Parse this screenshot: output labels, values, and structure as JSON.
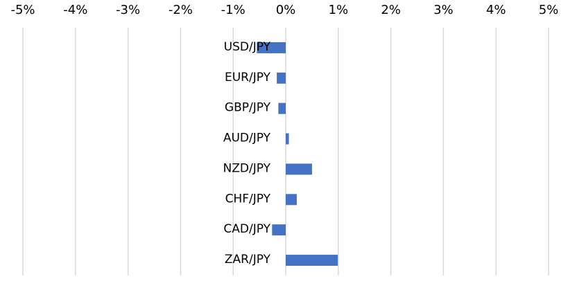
{
  "chart_data": {
    "type": "barh",
    "categories": [
      "USD/JPY",
      "EUR/JPY",
      "GBP/JPY",
      "AUD/JPY",
      "NZD/JPY",
      "CHF/JPY",
      "CAD/JPY",
      "ZAR/JPY"
    ],
    "values": [
      -0.55,
      -0.17,
      -0.14,
      0.06,
      0.5,
      0.21,
      -0.26,
      0.99
    ],
    "color": "#4472c4",
    "xlim": [
      -5,
      5
    ],
    "xticks": [
      {
        "value": -5,
        "label": "-5%"
      },
      {
        "value": -4,
        "label": "-4%"
      },
      {
        "value": -3,
        "label": "-3%"
      },
      {
        "value": -2,
        "label": "-2%"
      },
      {
        "value": -1,
        "label": "-1%"
      },
      {
        "value": 0,
        "label": "0%"
      },
      {
        "value": 1,
        "label": "1%"
      },
      {
        "value": 2,
        "label": "2%"
      },
      {
        "value": 3,
        "label": "3%"
      },
      {
        "value": 4,
        "label": "4%"
      },
      {
        "value": 5,
        "label": "5%"
      }
    ],
    "grid": true
  }
}
